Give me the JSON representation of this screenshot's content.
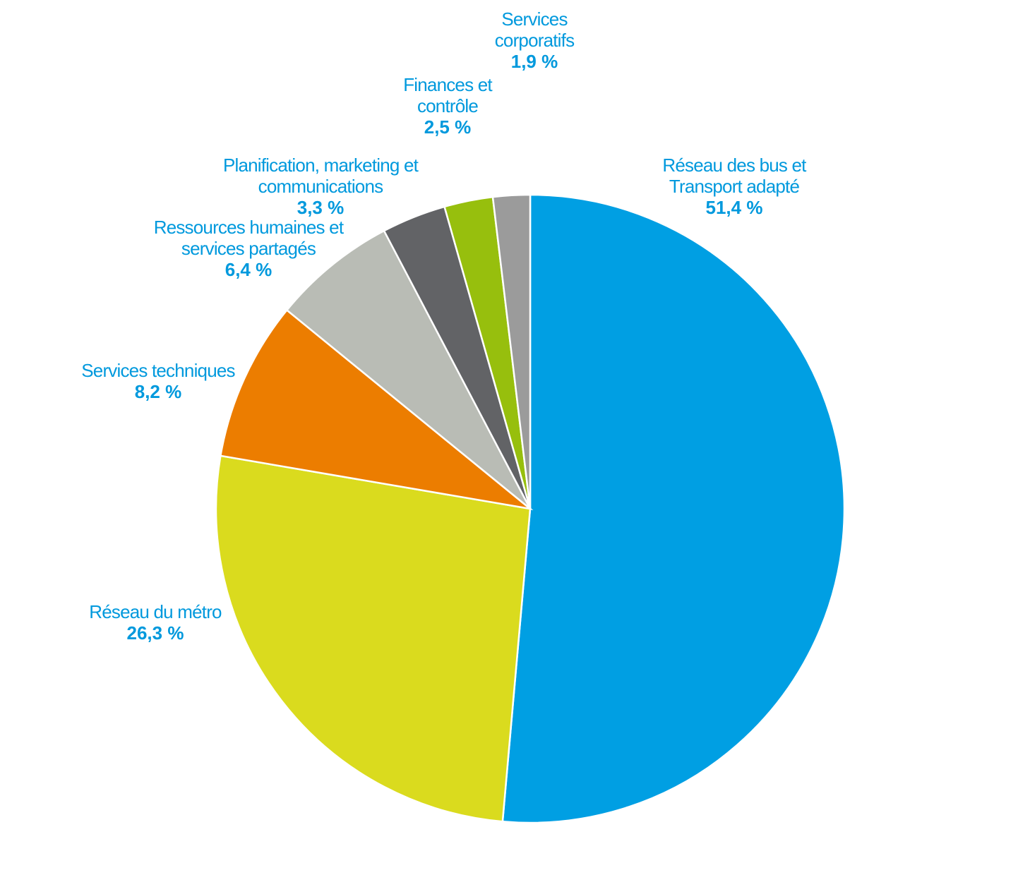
{
  "chart_data": {
    "type": "pie",
    "title": "",
    "unit": "%",
    "start_angle_deg": 0,
    "direction": "clockwise",
    "slices": [
      {
        "lines": [
          "Réseau des bus et",
          "Transport adapté"
        ],
        "value_label": "51,4 %",
        "value": 51.4,
        "color": "#009fe3"
      },
      {
        "lines": [
          "Réseau du métro"
        ],
        "value_label": "26,3 %",
        "value": 26.3,
        "color": "#dadb1e"
      },
      {
        "lines": [
          "Services techniques"
        ],
        "value_label": "8,2 %",
        "value": 8.2,
        "color": "#ec7d00"
      },
      {
        "lines": [
          "Ressources humaines et",
          "services partagés"
        ],
        "value_label": "6,4 %",
        "value": 6.4,
        "color": "#b9bcb5"
      },
      {
        "lines": [
          "Planification, marketing et",
          "communications"
        ],
        "value_label": "3,3 %",
        "value": 3.3,
        "color": "#626366"
      },
      {
        "lines": [
          "Finances et",
          "contrôle"
        ],
        "value_label": "2,5 %",
        "value": 2.5,
        "color": "#97bf0d"
      },
      {
        "lines": [
          "Services",
          "corporatifs"
        ],
        "value_label": "1,9 %",
        "value": 1.9,
        "color": "#9b9b9b"
      }
    ]
  }
}
